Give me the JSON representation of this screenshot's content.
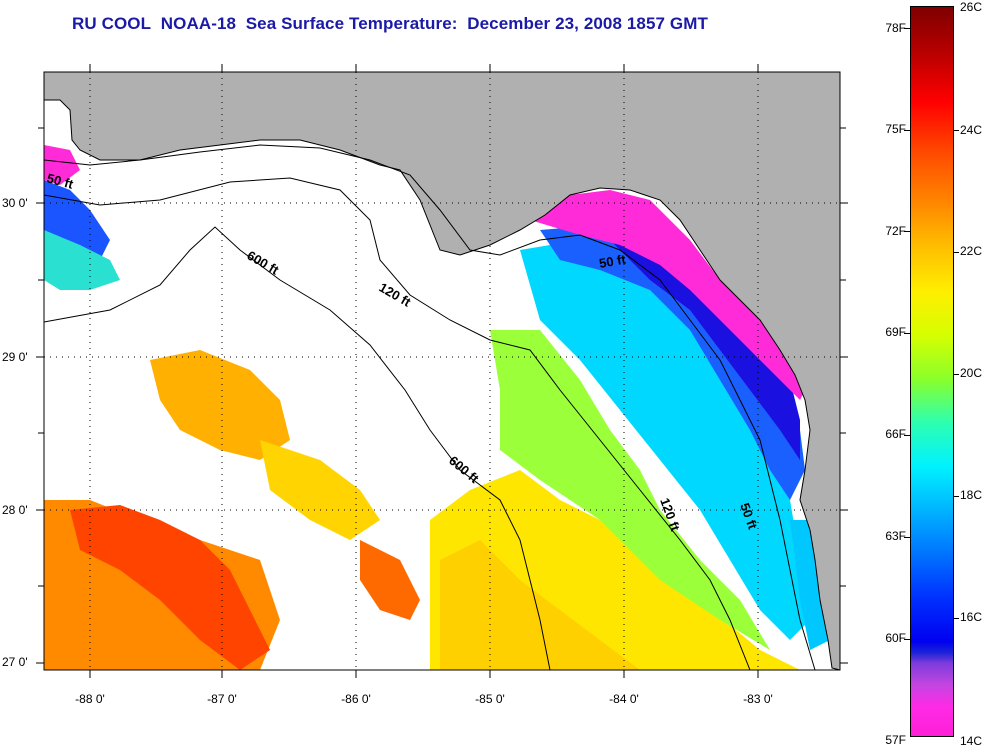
{
  "title": {
    "prefix": "RU COOL",
    "satellite": "NOAA-18",
    "product": "Sea Surface Temperature:",
    "date": "December 23, 2008 1857 GMT"
  },
  "map": {
    "latitude_labels": [
      "30 0'",
      "29 0'",
      "28 0'",
      "27 0'"
    ],
    "longitude_labels": [
      "-88 0'",
      "-87 0'",
      "-86 0'",
      "-85 0'",
      "-84 0'",
      "-83 0'"
    ],
    "isobath_labels": [
      "50 ft",
      "600 ft",
      "120 ft",
      "50 ft",
      "600 ft",
      "120 ft",
      "50 ft"
    ],
    "colors": {
      "land": "#b0b0b0",
      "no_data": "#ffffff",
      "coldest": "#ff1fd8",
      "warmest": "#7f0000"
    }
  },
  "colorbar": {
    "fahrenheit_labels": [
      "78F",
      "75F",
      "72F",
      "69F",
      "66F",
      "63F",
      "60F",
      "57F"
    ],
    "celsius_labels": [
      "26C",
      "24C",
      "22C",
      "20C",
      "18C",
      "16C",
      "14C"
    ]
  }
}
